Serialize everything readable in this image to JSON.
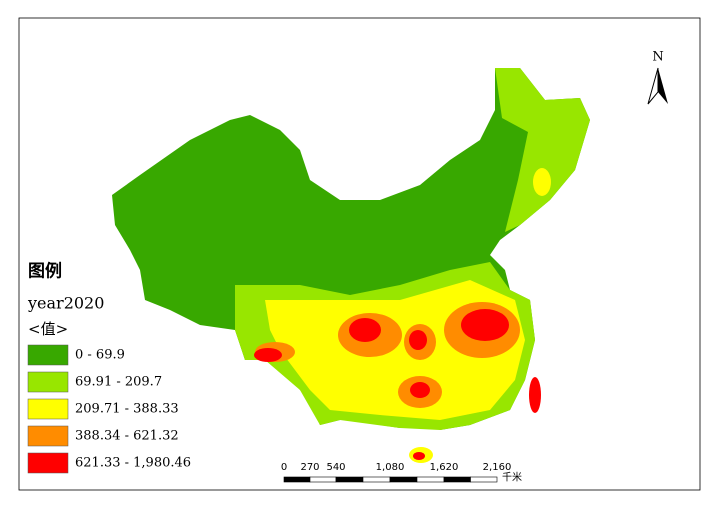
{
  "legend": {
    "title": "图例",
    "layer": "year2020",
    "field": "<值>",
    "classes": [
      {
        "label": "0  -  69.9",
        "color": "#38a800"
      },
      {
        "label": "69.91  -  209.7",
        "color": "#98e600"
      },
      {
        "label": "209.71  -  388.33",
        "color": "#ffff00"
      },
      {
        "label": "388.34  -  621.32",
        "color": "#ff8c00"
      },
      {
        "label": "621.33  -  1,980.46",
        "color": "#ff0000"
      }
    ]
  },
  "scale_bar": {
    "ticks": [
      "0",
      "270",
      "540",
      "1,080",
      "1,620",
      "2,160"
    ],
    "unit": "千米"
  },
  "north_arrow": {
    "label": "N"
  }
}
